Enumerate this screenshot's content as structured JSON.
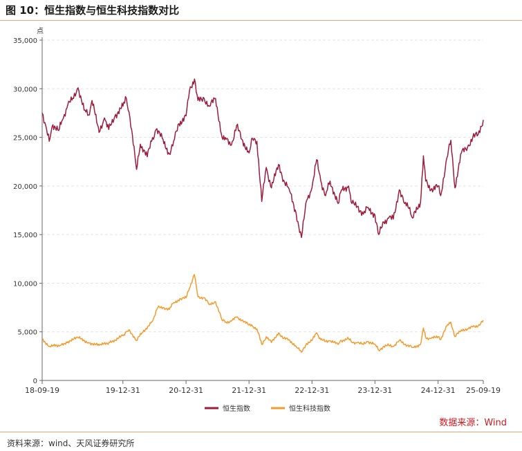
{
  "figure": {
    "title": "图 10：恒生指数与恒生科技指数对比",
    "source_note": "数据来源：Wind",
    "footer": "资料来源：wind、天风证券研究所"
  },
  "colors": {
    "hsi": "#9b1c3c",
    "hstech": "#f39b2c",
    "rule": "#e6a872",
    "source_text": "#d0181f"
  },
  "chart_data": {
    "type": "line",
    "ylabel": "点",
    "xlabel": "",
    "ylim": [
      0,
      35000
    ],
    "yticks": [
      0,
      5000,
      10000,
      15000,
      20000,
      25000,
      30000,
      35000
    ],
    "ytick_labels": [
      "0",
      "5,000",
      "10,000",
      "15,000",
      "20,000",
      "25,000",
      "30,000",
      "35,000"
    ],
    "x_domain": [
      "2018-09-19",
      "2025-09-19"
    ],
    "xticks": [
      "2018-09-19",
      "2019-12-31",
      "2020-12-31",
      "2021-12-31",
      "2022-12-31",
      "2023-12-31",
      "2024-12-31",
      "2025-09-19"
    ],
    "xtick_labels": [
      "18-09-19",
      "19-12-31",
      "20-12-31",
      "21-12-31",
      "22-12-31",
      "23-12-31",
      "24-12-31",
      "25-09-19"
    ],
    "grid": "horizontal dashed",
    "legend_position": "bottom-center",
    "series": [
      {
        "name": "恒生指数",
        "color": "#9b1c3c",
        "points": [
          [
            "2018-09-19",
            27500
          ],
          [
            "2018-10-10",
            26200
          ],
          [
            "2018-10-30",
            24600
          ],
          [
            "2018-11-20",
            26300
          ],
          [
            "2018-12-24",
            25700
          ],
          [
            "2019-01-15",
            26800
          ],
          [
            "2019-02-15",
            28400
          ],
          [
            "2019-03-20",
            29000
          ],
          [
            "2019-04-15",
            30100
          ],
          [
            "2019-05-20",
            27800
          ],
          [
            "2019-06-15",
            27300
          ],
          [
            "2019-07-05",
            28800
          ],
          [
            "2019-08-15",
            25500
          ],
          [
            "2019-09-15",
            27000
          ],
          [
            "2019-10-10",
            25800
          ],
          [
            "2019-11-15",
            27200
          ],
          [
            "2019-12-31",
            28200
          ],
          [
            "2020-01-20",
            29000
          ],
          [
            "2020-02-10",
            27000
          ],
          [
            "2020-03-19",
            21700
          ],
          [
            "2020-04-10",
            24300
          ],
          [
            "2020-05-20",
            23000
          ],
          [
            "2020-06-15",
            24600
          ],
          [
            "2020-07-10",
            25800
          ],
          [
            "2020-08-15",
            24900
          ],
          [
            "2020-09-25",
            23300
          ],
          [
            "2020-10-20",
            24600
          ],
          [
            "2020-11-20",
            26400
          ],
          [
            "2020-12-31",
            27200
          ],
          [
            "2021-01-20",
            29800
          ],
          [
            "2021-02-18",
            31000
          ],
          [
            "2021-03-10",
            28800
          ],
          [
            "2021-04-15",
            29000
          ],
          [
            "2021-05-15",
            28200
          ],
          [
            "2021-06-20",
            29000
          ],
          [
            "2021-07-28",
            25000
          ],
          [
            "2021-08-20",
            24800
          ],
          [
            "2021-09-20",
            24200
          ],
          [
            "2021-10-20",
            26200
          ],
          [
            "2021-11-20",
            24800
          ],
          [
            "2021-12-31",
            23400
          ],
          [
            "2022-01-20",
            24900
          ],
          [
            "2022-02-15",
            24600
          ],
          [
            "2022-03-15",
            18400
          ],
          [
            "2022-04-10",
            21900
          ],
          [
            "2022-05-10",
            19800
          ],
          [
            "2022-06-20",
            22200
          ],
          [
            "2022-07-20",
            20600
          ],
          [
            "2022-08-20",
            19700
          ],
          [
            "2022-09-30",
            17200
          ],
          [
            "2022-10-31",
            14700
          ],
          [
            "2022-11-30",
            18500
          ],
          [
            "2022-12-31",
            19800
          ],
          [
            "2023-01-27",
            22700
          ],
          [
            "2023-02-20",
            20500
          ],
          [
            "2023-03-20",
            19000
          ],
          [
            "2023-04-15",
            20500
          ],
          [
            "2023-05-31",
            18200
          ],
          [
            "2023-06-20",
            19600
          ],
          [
            "2023-07-31",
            20000
          ],
          [
            "2023-08-20",
            18200
          ],
          [
            "2023-09-20",
            17900
          ],
          [
            "2023-10-25",
            17100
          ],
          [
            "2023-11-20",
            17800
          ],
          [
            "2023-12-31",
            17000
          ],
          [
            "2024-01-22",
            15000
          ],
          [
            "2024-02-20",
            16300
          ],
          [
            "2024-03-20",
            16700
          ],
          [
            "2024-04-15",
            16600
          ],
          [
            "2024-05-20",
            19600
          ],
          [
            "2024-06-20",
            18200
          ],
          [
            "2024-07-20",
            17800
          ],
          [
            "2024-08-05",
            16700
          ],
          [
            "2024-09-20",
            18300
          ],
          [
            "2024-10-07",
            23100
          ],
          [
            "2024-10-20",
            20500
          ],
          [
            "2024-11-20",
            19600
          ],
          [
            "2024-12-31",
            20000
          ],
          [
            "2025-01-15",
            19000
          ],
          [
            "2025-02-20",
            22900
          ],
          [
            "2025-03-15",
            24700
          ],
          [
            "2025-04-08",
            19800
          ],
          [
            "2025-05-15",
            23400
          ],
          [
            "2025-06-20",
            24000
          ],
          [
            "2025-07-20",
            25000
          ],
          [
            "2025-08-20",
            25300
          ],
          [
            "2025-09-19",
            26800
          ]
        ]
      },
      {
        "name": "恒生科技指数",
        "color": "#f39b2c",
        "points": [
          [
            "2018-09-19",
            4300
          ],
          [
            "2018-10-30",
            3500
          ],
          [
            "2018-12-31",
            3600
          ],
          [
            "2019-02-15",
            4000
          ],
          [
            "2019-04-15",
            4400
          ],
          [
            "2019-06-15",
            3900
          ],
          [
            "2019-08-15",
            3600
          ],
          [
            "2019-10-15",
            3900
          ],
          [
            "2019-12-31",
            4600
          ],
          [
            "2020-01-20",
            5000
          ],
          [
            "2020-02-10",
            5100
          ],
          [
            "2020-03-19",
            4100
          ],
          [
            "2020-04-20",
            4900
          ],
          [
            "2020-06-20",
            6100
          ],
          [
            "2020-07-20",
            7500
          ],
          [
            "2020-08-20",
            7500
          ],
          [
            "2020-09-25",
            7300
          ],
          [
            "2020-10-20",
            8000
          ],
          [
            "2020-11-30",
            8400
          ],
          [
            "2020-12-31",
            8500
          ],
          [
            "2021-01-20",
            9500
          ],
          [
            "2021-02-17",
            10900
          ],
          [
            "2021-03-10",
            8600
          ],
          [
            "2021-04-15",
            8500
          ],
          [
            "2021-05-15",
            7800
          ],
          [
            "2021-06-20",
            8100
          ],
          [
            "2021-07-28",
            6200
          ],
          [
            "2021-08-20",
            6000
          ],
          [
            "2021-09-20",
            6100
          ],
          [
            "2021-10-20",
            6500
          ],
          [
            "2021-11-20",
            6200
          ],
          [
            "2021-12-31",
            5700
          ],
          [
            "2022-01-20",
            5600
          ],
          [
            "2022-02-15",
            5300
          ],
          [
            "2022-03-15",
            3700
          ],
          [
            "2022-04-10",
            4500
          ],
          [
            "2022-05-10",
            3900
          ],
          [
            "2022-06-20",
            4900
          ],
          [
            "2022-07-20",
            4300
          ],
          [
            "2022-08-20",
            4200
          ],
          [
            "2022-09-30",
            3500
          ],
          [
            "2022-10-31",
            2900
          ],
          [
            "2022-11-30",
            3800
          ],
          [
            "2022-12-31",
            4100
          ],
          [
            "2023-01-27",
            4900
          ],
          [
            "2023-02-20",
            4200
          ],
          [
            "2023-03-20",
            4000
          ],
          [
            "2023-04-15",
            4100
          ],
          [
            "2023-05-31",
            3700
          ],
          [
            "2023-06-20",
            4100
          ],
          [
            "2023-07-31",
            4300
          ],
          [
            "2023-08-20",
            3900
          ],
          [
            "2023-09-20",
            3900
          ],
          [
            "2023-10-25",
            3700
          ],
          [
            "2023-11-20",
            4000
          ],
          [
            "2023-12-31",
            3700
          ],
          [
            "2024-01-22",
            3100
          ],
          [
            "2024-02-20",
            3500
          ],
          [
            "2024-03-20",
            3600
          ],
          [
            "2024-04-15",
            3500
          ],
          [
            "2024-05-20",
            4100
          ],
          [
            "2024-06-20",
            3700
          ],
          [
            "2024-07-20",
            3600
          ],
          [
            "2024-08-05",
            3400
          ],
          [
            "2024-09-20",
            3700
          ],
          [
            "2024-10-07",
            5400
          ],
          [
            "2024-10-20",
            4400
          ],
          [
            "2024-11-20",
            4300
          ],
          [
            "2024-12-31",
            4500
          ],
          [
            "2025-01-15",
            4200
          ],
          [
            "2025-02-20",
            5600
          ],
          [
            "2025-03-15",
            6000
          ],
          [
            "2025-04-08",
            4500
          ],
          [
            "2025-05-15",
            5200
          ],
          [
            "2025-06-20",
            5300
          ],
          [
            "2025-07-20",
            5500
          ],
          [
            "2025-08-20",
            5600
          ],
          [
            "2025-09-19",
            6200
          ]
        ]
      }
    ]
  }
}
